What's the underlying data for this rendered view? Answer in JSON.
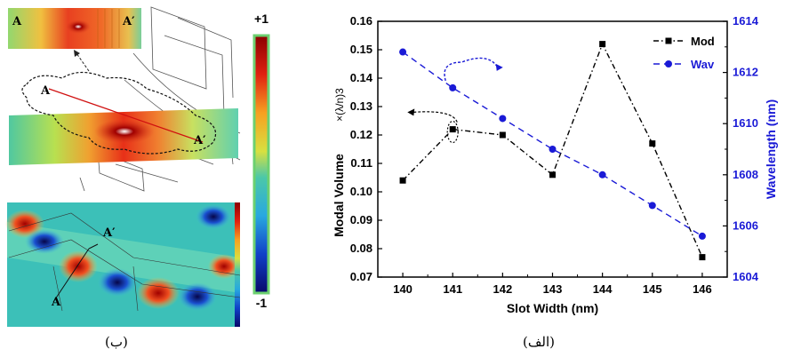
{
  "left_figure": {
    "colorbar_max": "+1",
    "colorbar_min": "-1",
    "label_A": "A",
    "label_A_prime": "A′",
    "caption": "(ب)"
  },
  "chart_caption": "(الف)",
  "chart_data": {
    "type": "line",
    "x": [
      140,
      141,
      142,
      143,
      144,
      145,
      146
    ],
    "xlabel": "Slot Width (nm)",
    "xlim": [
      139.5,
      146.5
    ],
    "ylabel_left": "Modal Volume",
    "ylabel_left_unit": "×(λ/n)3",
    "ylim_left": [
      0.07,
      0.16
    ],
    "yticks_left": [
      "0.07",
      "0.08",
      "0.09",
      "0.10",
      "0.11",
      "0.12",
      "0.13",
      "0.14",
      "0.15",
      "0.16"
    ],
    "ylabel_right": "Wavelength (nm)",
    "ylim_right": [
      1604,
      1614
    ],
    "yticks_right": [
      "1604",
      "1606",
      "1608",
      "1610",
      "1612",
      "1614"
    ],
    "xticks": [
      "140",
      "141",
      "142",
      "143",
      "144",
      "145",
      "146"
    ],
    "legend_position": "top-right",
    "series": [
      {
        "name": "Mod",
        "axis": "left",
        "color": "#000000",
        "marker": "square",
        "line": "dash-dot",
        "values": [
          0.104,
          0.122,
          0.12,
          0.106,
          0.152,
          0.117,
          0.077
        ]
      },
      {
        "name": "Wav",
        "axis": "right",
        "color": "#1a1ad6",
        "marker": "circle",
        "line": "dashed",
        "values": [
          1612.8,
          1611.4,
          1610.2,
          1609.0,
          1608.0,
          1606.8,
          1605.6
        ]
      }
    ]
  },
  "colors": {
    "wav": "#1a1ad6",
    "mod": "#000000",
    "right_axis": "#1a1ad6"
  }
}
